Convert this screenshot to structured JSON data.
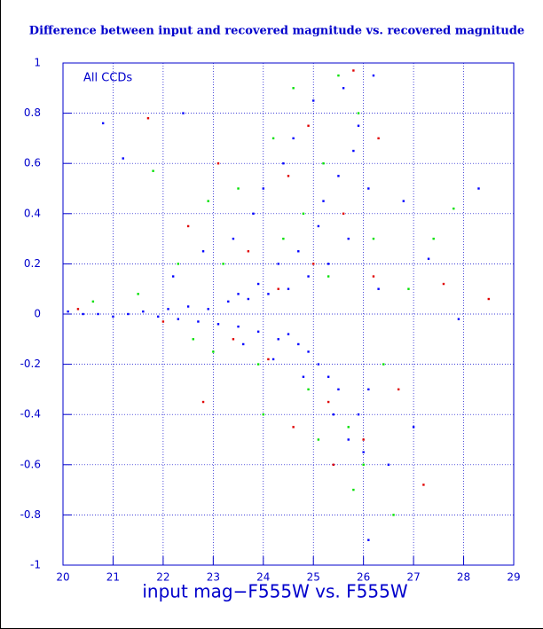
{
  "chart_data": {
    "type": "scatter",
    "title": "Difference between input and recovered magnitude vs. recovered magnitude",
    "annotation": "All CCDs",
    "x_label": "input mag−F555W vs. F555W",
    "xlim": [
      20,
      29
    ],
    "xticks": [
      20,
      21,
      22,
      23,
      24,
      25,
      26,
      27,
      28,
      29
    ],
    "ylim": [
      -1,
      1
    ],
    "yticks": [
      -1,
      -0.8,
      -0.6,
      -0.4,
      -0.2,
      0,
      0.2,
      0.4,
      0.6,
      0.8,
      1
    ],
    "grid": true,
    "series": [
      {
        "color": "#00e000",
        "x": [
          21.8,
          22.3,
          22.9,
          23.5,
          23.9,
          24.2,
          24.6,
          24.9,
          25.2,
          25.5,
          25.7,
          25.9,
          26.0,
          26.2,
          25.3,
          24.8,
          24.4,
          23.2,
          22.6,
          21.5,
          20.6,
          26.4,
          26.9,
          27.4,
          27.8,
          26.6,
          25.8,
          25.1,
          24.0,
          23.0
        ],
        "values": [
          0.57,
          0.2,
          0.45,
          0.5,
          -0.2,
          0.7,
          0.9,
          -0.3,
          0.6,
          0.95,
          -0.45,
          0.8,
          -0.6,
          0.3,
          0.15,
          0.4,
          0.3,
          0.2,
          -0.1,
          0.08,
          0.05,
          -0.2,
          0.1,
          0.3,
          0.42,
          -0.8,
          -0.7,
          -0.5,
          -0.4,
          -0.15
        ]
      },
      {
        "color": "#e00000",
        "x": [
          21.7,
          22.5,
          23.1,
          23.7,
          24.1,
          24.5,
          24.9,
          25.3,
          25.6,
          25.8,
          26.0,
          26.2,
          25.0,
          24.3,
          23.4,
          22.0,
          20.3,
          26.7,
          27.2,
          28.5,
          27.6,
          26.3,
          25.4,
          24.6,
          22.8
        ],
        "values": [
          0.78,
          0.35,
          0.6,
          0.25,
          -0.18,
          0.55,
          0.75,
          -0.35,
          0.4,
          0.97,
          -0.5,
          0.15,
          0.2,
          0.1,
          -0.1,
          -0.03,
          0.02,
          -0.3,
          -0.68,
          0.06,
          0.12,
          0.7,
          -0.6,
          -0.45,
          -0.35
        ]
      },
      {
        "color": "#0000ff",
        "x": [
          20.1,
          20.4,
          20.7,
          21.0,
          21.3,
          21.6,
          21.9,
          22.1,
          22.3,
          22.5,
          22.7,
          22.9,
          23.1,
          23.3,
          23.5,
          23.7,
          23.9,
          24.1,
          24.3,
          24.5,
          24.7,
          24.9,
          25.1,
          25.3,
          25.5,
          25.7,
          25.9,
          26.1,
          22.2,
          22.8,
          23.4,
          23.6,
          23.8,
          24.0,
          24.2,
          24.4,
          24.6,
          24.8,
          25.0,
          25.2,
          25.4,
          25.6,
          25.8,
          26.0,
          26.2,
          25.9,
          25.5,
          25.1,
          24.7,
          24.3,
          23.9,
          23.5,
          26.1,
          25.7,
          25.3,
          24.9,
          24.5,
          26.3,
          26.8,
          27.3,
          27.9,
          28.3,
          21.2,
          20.8,
          22.4,
          26.5,
          27.0,
          26.1
        ],
        "values": [
          0.01,
          0.0,
          0.0,
          -0.01,
          0.0,
          0.01,
          -0.01,
          0.02,
          -0.02,
          0.03,
          -0.03,
          0.02,
          -0.04,
          0.05,
          -0.05,
          0.06,
          -0.07,
          0.08,
          -0.1,
          0.1,
          -0.12,
          0.15,
          -0.2,
          0.2,
          -0.3,
          0.3,
          -0.4,
          0.5,
          0.15,
          0.25,
          0.3,
          -0.12,
          0.4,
          0.5,
          -0.18,
          0.6,
          0.7,
          -0.25,
          0.85,
          0.45,
          -0.4,
          0.9,
          0.65,
          -0.55,
          0.95,
          0.75,
          0.55,
          0.35,
          0.25,
          0.2,
          0.12,
          0.08,
          -0.3,
          -0.5,
          -0.25,
          -0.15,
          -0.08,
          0.1,
          0.45,
          0.22,
          -0.02,
          0.5,
          0.62,
          0.76,
          0.8,
          -0.6,
          -0.45,
          -0.9
        ]
      }
    ]
  }
}
